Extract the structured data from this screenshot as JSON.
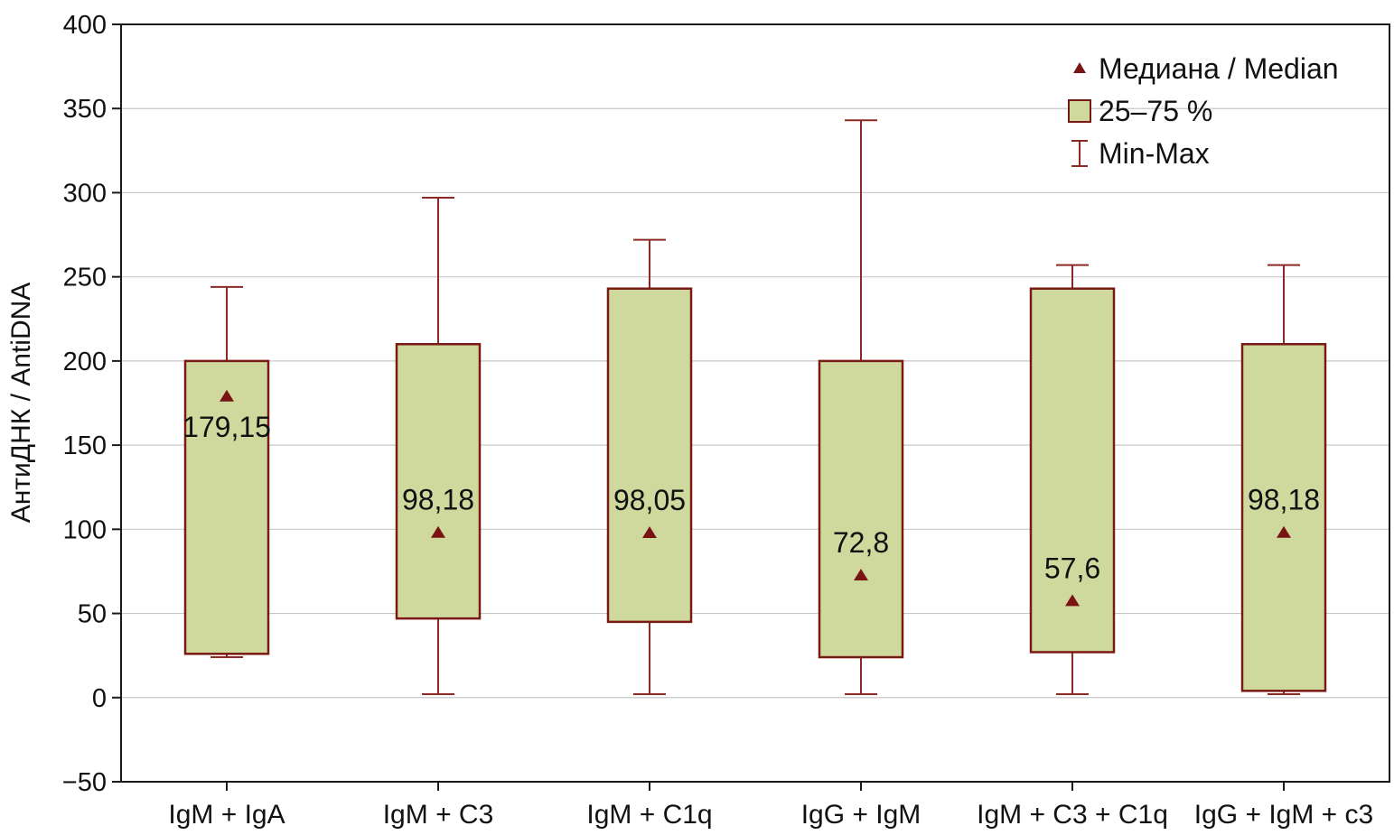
{
  "chart_data": {
    "type": "boxplot",
    "title": "",
    "xlabel": "",
    "ylabel": "АнтиДНК / AntiDNA",
    "ylim": [
      -50,
      400
    ],
    "yticks": [
      -50,
      0,
      50,
      100,
      150,
      200,
      250,
      300,
      350,
      400
    ],
    "grid": true,
    "legend_position": "top-right",
    "legend": [
      {
        "key": "median",
        "label": "Медиана / Median"
      },
      {
        "key": "box",
        "label": "25–75 %"
      },
      {
        "key": "whisker",
        "label": "Min-Max"
      }
    ],
    "colors": {
      "box_fill": "#cfd99e",
      "box_stroke": "#7a1a14",
      "median_marker": "#7a1414",
      "whisker": "#8b2a24",
      "grid": "#c8c8c8",
      "axis": "#1a1a1a"
    },
    "categories": [
      "IgM + IgA",
      "IgM + C3",
      "IgM + C1q",
      "IgG + IgM",
      "IgM + C3 + C1q",
      "IgG + IgM + c3"
    ],
    "groups": [
      {
        "category": "IgM + IgA",
        "min": 24,
        "q1": 26,
        "median": 179.15,
        "q3": 200,
        "max": 244,
        "median_label": "179,15"
      },
      {
        "category": "IgM + C3",
        "min": 2,
        "q1": 47,
        "median": 98.18,
        "q3": 210,
        "max": 297,
        "median_label": "98,18"
      },
      {
        "category": "IgM + C1q",
        "min": 2,
        "q1": 45,
        "median": 98.05,
        "q3": 243,
        "max": 272,
        "median_label": "98,05"
      },
      {
        "category": "IgG + IgM",
        "min": 2,
        "q1": 24,
        "median": 72.8,
        "q3": 200,
        "max": 343,
        "median_label": "72,8"
      },
      {
        "category": "IgM + C3 + C1q",
        "min": 2,
        "q1": 27,
        "median": 57.6,
        "q3": 243,
        "max": 257,
        "median_label": "57,6"
      },
      {
        "category": "IgG + IgM + c3",
        "min": 2,
        "q1": 4,
        "median": 98.18,
        "q3": 210,
        "max": 257,
        "median_label": "98,18"
      }
    ]
  }
}
